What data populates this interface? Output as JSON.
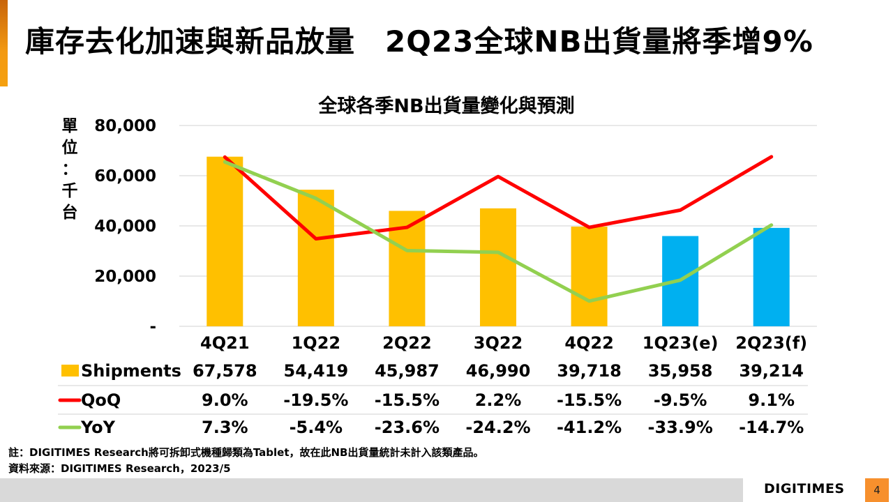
{
  "slide": {
    "title": "庫存去化加速與新品放量　2Q23全球NB出貨量將季增9%",
    "footnote_1": "註：DIGITIMES Research將可拆卸式機種歸類為Tablet，故在此NB出貨量統計未計入該類產品。",
    "footnote_2": "資料來源：DIGITIMES Research，2023/5",
    "logo_text": "DIGITIMES",
    "page_number": "4",
    "accent_color": "#f39a12"
  },
  "chart_data": {
    "type": "bar",
    "title": "全球各季NB出貨量變化與預測",
    "ylabel": "單位：千台",
    "ylabel_chars": [
      "單",
      "位",
      "：",
      "千",
      "台"
    ],
    "ylim": [
      0,
      80000
    ],
    "y_ticks": [
      0,
      20000,
      40000,
      60000,
      80000
    ],
    "y_tick_labels": [
      "-",
      "20,000",
      "40,000",
      "60,000",
      "80,000"
    ],
    "y2lim": [
      -50,
      20
    ],
    "grid": true,
    "legend": "data-table-left",
    "categories": [
      "4Q21",
      "1Q22",
      "2Q22",
      "3Q22",
      "4Q22",
      "1Q23(e)",
      "2Q23(f)"
    ],
    "series": [
      {
        "name": "Shipments",
        "type": "bar",
        "axis": "primary",
        "color": "#ffc000",
        "forecast_color": "#00b0f0",
        "forecast_flags": [
          false,
          false,
          false,
          false,
          false,
          true,
          true
        ],
        "values": [
          67578,
          54419,
          45987,
          46990,
          39718,
          35958,
          39214
        ],
        "labels": [
          "67,578",
          "54,419",
          "45,987",
          "46,990",
          "39,718",
          "35,958",
          "39,214"
        ]
      },
      {
        "name": "QoQ",
        "type": "line",
        "axis": "secondary",
        "unit": "%",
        "color": "#ff0000",
        "values": [
          9.0,
          -19.5,
          -15.5,
          2.2,
          -15.5,
          -9.5,
          9.1
        ],
        "labels": [
          "9.0%",
          "-19.5%",
          "-15.5%",
          "2.2%",
          "-15.5%",
          "-9.5%",
          "9.1%"
        ]
      },
      {
        "name": "YoY",
        "type": "line",
        "axis": "secondary",
        "unit": "%",
        "color": "#92d050",
        "values": [
          7.3,
          -5.4,
          -23.6,
          -24.2,
          -41.2,
          -33.9,
          -14.7
        ],
        "labels": [
          "7.3%",
          "-5.4%",
          "-23.6%",
          "-24.2%",
          "-41.2%",
          "-33.9%",
          "-14.7%"
        ]
      }
    ]
  }
}
